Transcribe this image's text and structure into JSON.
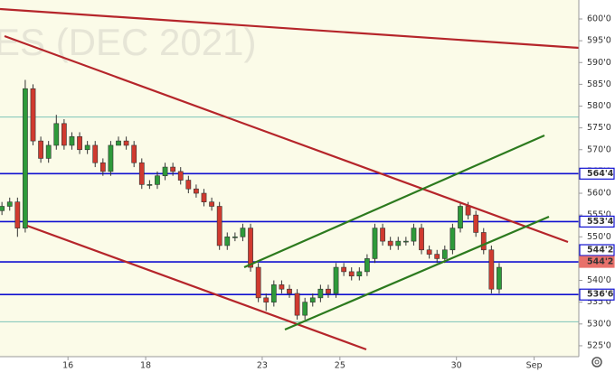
{
  "chart_data": {
    "type": "candlestick",
    "title": "ES (DEC 2021)",
    "x": [
      -1.7,
      -1.5,
      -1.3,
      -1.1,
      -0.9,
      -0.7,
      -0.5,
      -0.3,
      -0.1,
      0.1,
      0.3,
      0.5,
      0.7,
      0.9,
      1.1,
      1.3,
      1.5,
      1.7,
      1.9,
      2.1,
      2.3,
      2.5,
      2.7,
      2.9,
      3.1,
      3.3,
      3.5,
      3.7,
      3.9,
      4.1,
      4.3,
      4.5,
      4.7,
      4.9,
      5.1,
      5.3,
      5.5,
      5.7,
      5.9,
      6.1,
      6.3,
      6.5,
      6.7,
      6.9,
      7.1,
      7.3,
      7.5,
      7.7,
      7.9,
      8.1,
      8.3,
      8.5,
      8.7,
      8.9,
      9.1,
      9.3,
      9.5,
      9.7,
      9.9,
      10.1,
      10.3,
      10.5,
      10.7,
      10.9,
      11.1
    ],
    "open": [
      556,
      557,
      558,
      552,
      584,
      572,
      568,
      571,
      576,
      571,
      573,
      570,
      571,
      567,
      565,
      571,
      572,
      571,
      567,
      562,
      562,
      564,
      566,
      565,
      563,
      561,
      560,
      558,
      557,
      548,
      550,
      550,
      552,
      543,
      536,
      535,
      539,
      538,
      537,
      532,
      535,
      536,
      538,
      537,
      543,
      542,
      541,
      542,
      545,
      552,
      549,
      548,
      549,
      549,
      552,
      547,
      546,
      545,
      547,
      552,
      557,
      555,
      551,
      547,
      538
    ],
    "high": [
      558,
      559,
      559,
      586,
      585,
      573,
      572,
      578,
      577,
      574,
      574,
      572,
      572,
      568,
      572,
      573,
      573,
      572,
      568,
      563,
      565,
      567,
      567,
      566,
      564,
      562,
      561,
      559,
      558,
      551,
      551,
      553,
      553,
      544,
      537,
      540,
      540,
      539,
      538,
      536,
      537,
      539,
      539,
      544,
      544,
      543,
      543,
      546,
      553,
      553,
      550,
      550,
      550,
      553,
      553,
      548,
      547,
      548,
      553,
      558,
      558,
      556,
      552,
      548,
      544
    ],
    "low": [
      555,
      556,
      550,
      551,
      571,
      567,
      567,
      570,
      570,
      570,
      569,
      569,
      566,
      564,
      564,
      571,
      570,
      566,
      561,
      561,
      561,
      563,
      564,
      562,
      560,
      559,
      557,
      556,
      547,
      547,
      549,
      549,
      542,
      535,
      533,
      534,
      537,
      536,
      531,
      531,
      534,
      535,
      536,
      536,
      541,
      540,
      540,
      541,
      544,
      548,
      547,
      547,
      548,
      548,
      546,
      545,
      544,
      544,
      546,
      551,
      554,
      550,
      546,
      537,
      537
    ],
    "close": [
      557,
      558,
      552,
      584,
      572,
      568,
      571,
      576,
      571,
      573,
      570,
      571,
      567,
      565,
      571,
      572,
      571,
      567,
      562,
      562,
      564,
      566,
      565,
      563,
      561,
      560,
      558,
      557,
      548,
      550,
      550,
      552,
      543,
      536,
      535,
      539,
      538,
      537,
      532,
      535,
      536,
      538,
      537,
      543,
      542,
      541,
      542,
      545,
      552,
      549,
      548,
      549,
      549,
      552,
      547,
      546,
      545,
      547,
      552,
      557,
      555,
      551,
      547,
      538,
      543
    ],
    "up_color": "#2e9a3a",
    "down_color": "#d03a2f",
    "xlim": [
      -1.75,
      13.15
    ],
    "xticks": [
      {
        "value": 0,
        "label": "16"
      },
      {
        "value": 2,
        "label": "18"
      },
      {
        "value": 5,
        "label": "23"
      },
      {
        "value": 7,
        "label": "25"
      },
      {
        "value": 10,
        "label": "30"
      },
      {
        "value": 12,
        "label": "Sep"
      }
    ],
    "ylim": [
      522.5,
      604.35
    ],
    "yticks": [
      {
        "value": 525,
        "label": "525'0"
      },
      {
        "value": 530,
        "label": "530'0"
      },
      {
        "value": 535,
        "label": "535'0"
      },
      {
        "value": 540,
        "label": "540'0"
      },
      {
        "value": 545,
        "label": "545'0"
      },
      {
        "value": 550,
        "label": "550'0"
      },
      {
        "value": 555,
        "label": "555'0"
      },
      {
        "value": 560,
        "label": "560'0"
      },
      {
        "value": 565,
        "label": "565'0"
      },
      {
        "value": 570,
        "label": "570'0"
      },
      {
        "value": 575,
        "label": "575'0"
      },
      {
        "value": 580,
        "label": "580'0"
      },
      {
        "value": 585,
        "label": "585'0"
      },
      {
        "value": 590,
        "label": "590'0"
      },
      {
        "value": 595,
        "label": "595'0"
      },
      {
        "value": 600,
        "label": "600'0"
      }
    ],
    "levels": [
      {
        "value": 564.5,
        "label": "564'4"
      },
      {
        "value": 553.5,
        "label": "553'4"
      },
      {
        "value": 544.25,
        "label": "544'2"
      },
      {
        "value": 536.75,
        "label": "536'6"
      }
    ],
    "level_color": "#1010d0",
    "guides": [
      577.5,
      530.5
    ],
    "guide_color": "#7cc4b8",
    "last_price": {
      "value": 544.25,
      "label": "544'2"
    },
    "last_color": "#e8706a"
  }
}
